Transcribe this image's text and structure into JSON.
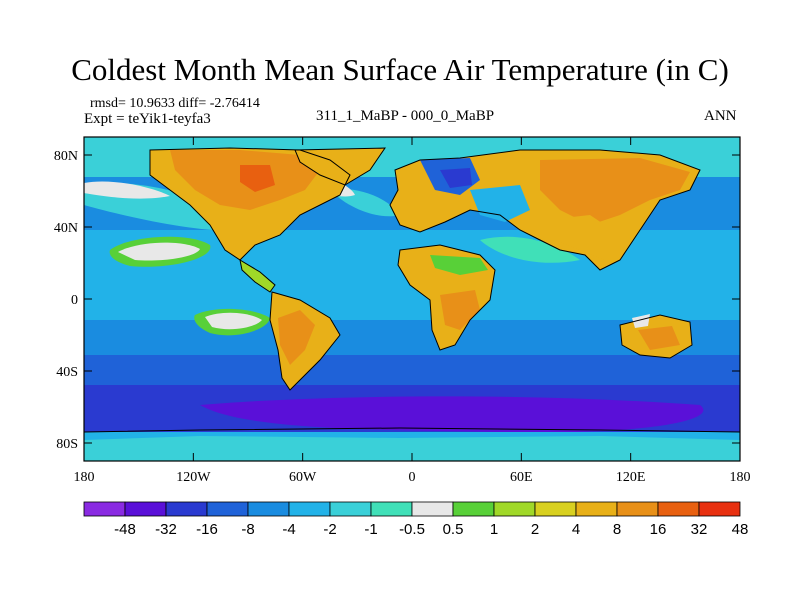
{
  "title": "Coldest Month Mean Surface Air Temperature (in C)",
  "stats": "rmsd= 10.9633 diff= -2.76414",
  "experiment": "Expt = teYik1-teyfa3",
  "case": "311_1_MaBP - 000_0_MaBP",
  "period": "ANN",
  "x_axis": {
    "ticks": [
      "180",
      "120W",
      "60W",
      "0",
      "60E",
      "120E",
      "180"
    ],
    "values": [
      -180,
      -120,
      -60,
      0,
      60,
      120,
      180
    ]
  },
  "y_axis": {
    "ticks": [
      "80N",
      "40N",
      "0",
      "40S",
      "80S"
    ],
    "values": [
      80,
      40,
      0,
      -40,
      -80
    ]
  },
  "colorbar": {
    "labels": [
      "-48",
      "-32",
      "-16",
      "-8",
      "-4",
      "-2",
      "-1",
      "-0.5",
      "0.5",
      "1",
      "2",
      "4",
      "8",
      "16",
      "32",
      "48"
    ],
    "colors": [
      "#8a2be2",
      "#5a10d8",
      "#2a3ad0",
      "#1f62d8",
      "#1a8ce0",
      "#22b2e8",
      "#3ad0d8",
      "#40e0b8",
      "#e8e8e8",
      "#58d038",
      "#a0d828",
      "#d8d020",
      "#e8b018",
      "#e89018",
      "#e86010",
      "#e83010"
    ]
  }
}
